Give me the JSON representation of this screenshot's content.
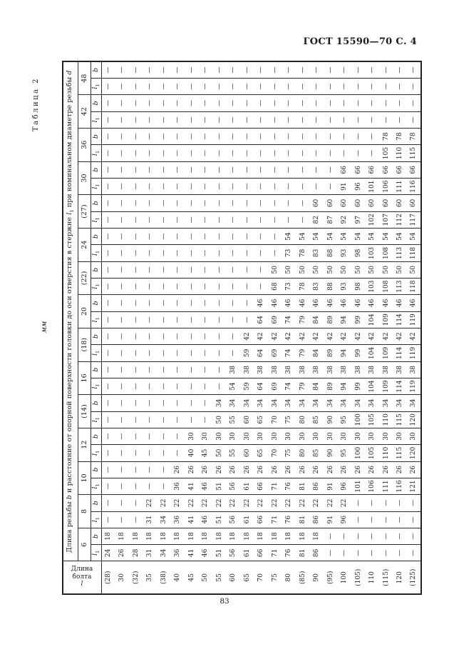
{
  "page": {
    "header": "ГОСТ 15590—70 С. 4",
    "table_label": "Таблица 2",
    "units": "мм",
    "page_number": "83"
  },
  "table": {
    "title_parts": [
      {
        "t": "Длина резьбы "
      },
      {
        "t": "b",
        "i": true
      },
      {
        "t": " и расстояние от опорной поверхности головки до оси отверстия в стержне "
      },
      {
        "t": "l",
        "i": true
      },
      {
        "t": "1",
        "sub": true
      },
      {
        "t": " при номинальном диаметре резьбы "
      },
      {
        "t": "d",
        "i": true
      }
    ],
    "corner_line1": [
      {
        "t": "Длина"
      }
    ],
    "corner_line2": [
      {
        "t": "болта "
      },
      {
        "t": "l",
        "i": true
      }
    ],
    "sub_label_l1": "l1",
    "sub_label_b": "b",
    "lengths": [
      "(28)",
      "30",
      "(32)",
      "35",
      "(38)",
      "40",
      "45",
      "50",
      "55",
      "60",
      "65",
      "70",
      "75",
      "80",
      "(85)",
      "90",
      "(95)",
      "100",
      "(105)",
      "110",
      "(115)",
      "120",
      "(125)"
    ],
    "diameters": [
      {
        "d": "6",
        "l1": [
          "24",
          "26",
          "28",
          "31",
          "34",
          "36",
          "41",
          "46",
          "51",
          "56",
          "61",
          "66",
          "71",
          "76",
          "81",
          "86",
          "—",
          "—",
          "—",
          "—",
          "—",
          "—",
          "—"
        ],
        "b": [
          "18",
          "18",
          "18",
          "18",
          "18",
          "18",
          "18",
          "18",
          "18",
          "18",
          "18",
          "18",
          "18",
          "18",
          "18",
          "18",
          "—",
          "—",
          "—",
          "—",
          "—",
          "—",
          "—"
        ]
      },
      {
        "d": "8",
        "l1": [
          "—",
          "—",
          "—",
          "31",
          "34",
          "36",
          "41",
          "46",
          "51",
          "56",
          "61",
          "66",
          "71",
          "76",
          "81",
          "86",
          "91",
          "96",
          "—",
          "—",
          "—",
          "—",
          "—"
        ],
        "b": [
          "—",
          "—",
          "—",
          "22",
          "22",
          "22",
          "22",
          "22",
          "22",
          "22",
          "22",
          "22",
          "22",
          "22",
          "22",
          "22",
          "22",
          "22",
          "—",
          "—",
          "—",
          "—",
          "—"
        ]
      },
      {
        "d": "10",
        "l1": [
          "—",
          "—",
          "—",
          "—",
          "—",
          "36",
          "41",
          "46",
          "51",
          "56",
          "61",
          "66",
          "71",
          "76",
          "81",
          "86",
          "91",
          "96",
          "101",
          "106",
          "111",
          "116",
          "121"
        ],
        "b": [
          "—",
          "—",
          "—",
          "—",
          "—",
          "26",
          "26",
          "26",
          "26",
          "26",
          "26",
          "26",
          "26",
          "26",
          "26",
          "26",
          "26",
          "26",
          "26",
          "26",
          "26",
          "26",
          "26"
        ]
      },
      {
        "d": "12",
        "l1": [
          "—",
          "—",
          "—",
          "—",
          "—",
          "—",
          "40",
          "45",
          "50",
          "55",
          "60",
          "65",
          "70",
          "75",
          "80",
          "85",
          "90",
          "95",
          "100",
          "105",
          "110",
          "115",
          "120"
        ],
        "b": [
          "—",
          "—",
          "—",
          "—",
          "—",
          "—",
          "30",
          "30",
          "30",
          "30",
          "30",
          "30",
          "30",
          "30",
          "30",
          "30",
          "30",
          "30",
          "30",
          "30",
          "30",
          "30",
          "30"
        ]
      },
      {
        "d": "(14)",
        "l1": [
          "—",
          "—",
          "—",
          "—",
          "—",
          "—",
          "—",
          "—",
          "50",
          "55",
          "60",
          "65",
          "70",
          "75",
          "80",
          "85",
          "90",
          "95",
          "100",
          "105",
          "110",
          "115",
          "120"
        ],
        "b": [
          "—",
          "—",
          "—",
          "—",
          "—",
          "—",
          "—",
          "—",
          "34",
          "34",
          "34",
          "34",
          "34",
          "34",
          "34",
          "34",
          "34",
          "34",
          "34",
          "34",
          "34",
          "34",
          "34"
        ]
      },
      {
        "d": "16",
        "l1": [
          "—",
          "—",
          "—",
          "—",
          "—",
          "—",
          "—",
          "—",
          "—",
          "54",
          "59",
          "64",
          "69",
          "74",
          "79",
          "84",
          "89",
          "94",
          "99",
          "104",
          "109",
          "114",
          "119"
        ],
        "b": [
          "—",
          "—",
          "—",
          "—",
          "—",
          "—",
          "—",
          "—",
          "—",
          "38",
          "38",
          "38",
          "38",
          "38",
          "38",
          "38",
          "38",
          "38",
          "38",
          "38",
          "38",
          "38",
          "38"
        ]
      },
      {
        "d": "(18)",
        "l1": [
          "—",
          "—",
          "—",
          "—",
          "—",
          "—",
          "—",
          "—",
          "—",
          "—",
          "59",
          "64",
          "69",
          "74",
          "79",
          "84",
          "89",
          "94",
          "99",
          "104",
          "109",
          "114",
          "119"
        ],
        "b": [
          "—",
          "—",
          "—",
          "—",
          "—",
          "—",
          "—",
          "—",
          "—",
          "—",
          "42",
          "42",
          "42",
          "42",
          "42",
          "42",
          "42",
          "42",
          "42",
          "42",
          "42",
          "42",
          "42"
        ]
      },
      {
        "d": "20",
        "l1": [
          "—",
          "—",
          "—",
          "—",
          "—",
          "—",
          "—",
          "—",
          "—",
          "—",
          "—",
          "64",
          "69",
          "74",
          "79",
          "84",
          "89",
          "94",
          "99",
          "104",
          "109",
          "114",
          "119"
        ],
        "b": [
          "—",
          "—",
          "—",
          "—",
          "—",
          "—",
          "—",
          "—",
          "—",
          "—",
          "—",
          "46",
          "46",
          "46",
          "46",
          "46",
          "46",
          "46",
          "46",
          "46",
          "46",
          "46",
          "46"
        ]
      },
      {
        "d": "(22)",
        "l1": [
          "—",
          "—",
          "—",
          "—",
          "—",
          "—",
          "—",
          "—",
          "—",
          "—",
          "—",
          "—",
          "68",
          "73",
          "78",
          "83",
          "88",
          "93",
          "98",
          "103",
          "108",
          "113",
          "118"
        ],
        "b": [
          "—",
          "—",
          "—",
          "—",
          "—",
          "—",
          "—",
          "—",
          "—",
          "—",
          "—",
          "—",
          "50",
          "50",
          "50",
          "50",
          "50",
          "50",
          "50",
          "50",
          "50",
          "50",
          "50"
        ]
      },
      {
        "d": "24",
        "l1": [
          "—",
          "—",
          "—",
          "—",
          "—",
          "—",
          "—",
          "—",
          "—",
          "—",
          "—",
          "—",
          "—",
          "73",
          "78",
          "83",
          "88",
          "93",
          "98",
          "103",
          "108",
          "113",
          "118"
        ],
        "b": [
          "—",
          "—",
          "—",
          "—",
          "—",
          "—",
          "—",
          "—",
          "—",
          "—",
          "—",
          "—",
          "—",
          "54",
          "54",
          "54",
          "54",
          "54",
          "54",
          "54",
          "54",
          "54",
          "54"
        ]
      },
      {
        "d": "(27)",
        "l1": [
          "—",
          "—",
          "—",
          "—",
          "—",
          "—",
          "—",
          "—",
          "—",
          "—",
          "—",
          "—",
          "—",
          "—",
          "—",
          "82",
          "87",
          "92",
          "97",
          "102",
          "107",
          "112",
          "117"
        ],
        "b": [
          "—",
          "—",
          "—",
          "—",
          "—",
          "—",
          "—",
          "—",
          "—",
          "—",
          "—",
          "—",
          "—",
          "—",
          "—",
          "60",
          "60",
          "60",
          "60",
          "60",
          "60",
          "60",
          "60"
        ]
      },
      {
        "d": "30",
        "l1": [
          "—",
          "—",
          "—",
          "—",
          "—",
          "—",
          "—",
          "—",
          "—",
          "—",
          "—",
          "—",
          "—",
          "—",
          "—",
          "—",
          "—",
          "91",
          "96",
          "101",
          "106",
          "111",
          "116"
        ],
        "b": [
          "—",
          "—",
          "—",
          "—",
          "—",
          "—",
          "—",
          "—",
          "—",
          "—",
          "—",
          "—",
          "—",
          "—",
          "—",
          "—",
          "—",
          "66",
          "66",
          "66",
          "66",
          "66",
          "66"
        ]
      },
      {
        "d": "36",
        "l1": [
          "—",
          "—",
          "—",
          "—",
          "—",
          "—",
          "—",
          "—",
          "—",
          "—",
          "—",
          "—",
          "—",
          "—",
          "—",
          "—",
          "—",
          "—",
          "—",
          "—",
          "105",
          "110",
          "115"
        ],
        "b": [
          "—",
          "—",
          "—",
          "—",
          "—",
          "—",
          "—",
          "—",
          "—",
          "—",
          "—",
          "—",
          "—",
          "—",
          "—",
          "—",
          "—",
          "—",
          "—",
          "—",
          "78",
          "78",
          "78"
        ]
      },
      {
        "d": "42",
        "l1": [
          "—",
          "—",
          "—",
          "—",
          "—",
          "—",
          "—",
          "—",
          "—",
          "—",
          "—",
          "—",
          "—",
          "—",
          "—",
          "—",
          "—",
          "—",
          "—",
          "—",
          "—",
          "—",
          "—"
        ],
        "b": [
          "—",
          "—",
          "—",
          "—",
          "—",
          "—",
          "—",
          "—",
          "—",
          "—",
          "—",
          "—",
          "—",
          "—",
          "—",
          "—",
          "—",
          "—",
          "—",
          "—",
          "—",
          "—",
          "—"
        ]
      },
      {
        "d": "48",
        "l1": [
          "—",
          "—",
          "—",
          "—",
          "—",
          "—",
          "—",
          "—",
          "—",
          "—",
          "—",
          "—",
          "—",
          "—",
          "—",
          "—",
          "—",
          "—",
          "—",
          "—",
          "—",
          "—",
          "—"
        ],
        "b": [
          "—",
          "—",
          "—",
          "—",
          "—",
          "—",
          "—",
          "—",
          "—",
          "—",
          "—",
          "—",
          "—",
          "—",
          "—",
          "—",
          "—",
          "—",
          "—",
          "—",
          "—",
          "—",
          "—"
        ]
      }
    ]
  }
}
